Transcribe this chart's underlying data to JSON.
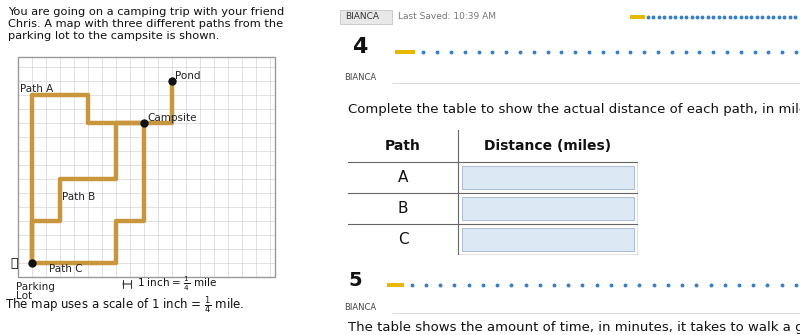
{
  "title_text": "Complete the table to show the actual distance of each path, in miles.",
  "question_number": "4",
  "bianca_label": "BIANCA",
  "last_saved": "Last Saved: 10:39 AM",
  "header_col1": "Path",
  "header_col2": "Distance (miles)",
  "rows": [
    "A",
    "B",
    "C"
  ],
  "table_border_color": "#666666",
  "input_bg_color": "#dce9f5",
  "input_border_color": "#aabdd4",
  "bg_color": "#ffffff",
  "number_box_bg": "#e0e0e0",
  "number_box_color": "#111111",
  "tab_text": "BIANCA",
  "tab_text2": "Last Saved: 10:39 AM",
  "progress_bar_yellow": "#e8b800",
  "progress_bar_blue": "#3a7fc1",
  "divider_color": "#cccccc",
  "number5": "5",
  "path_color": "#c8963c",
  "grid_color": "#cccccc",
  "dot_color": "#111111",
  "top_bar_bg": "#f5f5f5",
  "top_border_color": "#3a8fbd",
  "left_bg": "#ffffff"
}
